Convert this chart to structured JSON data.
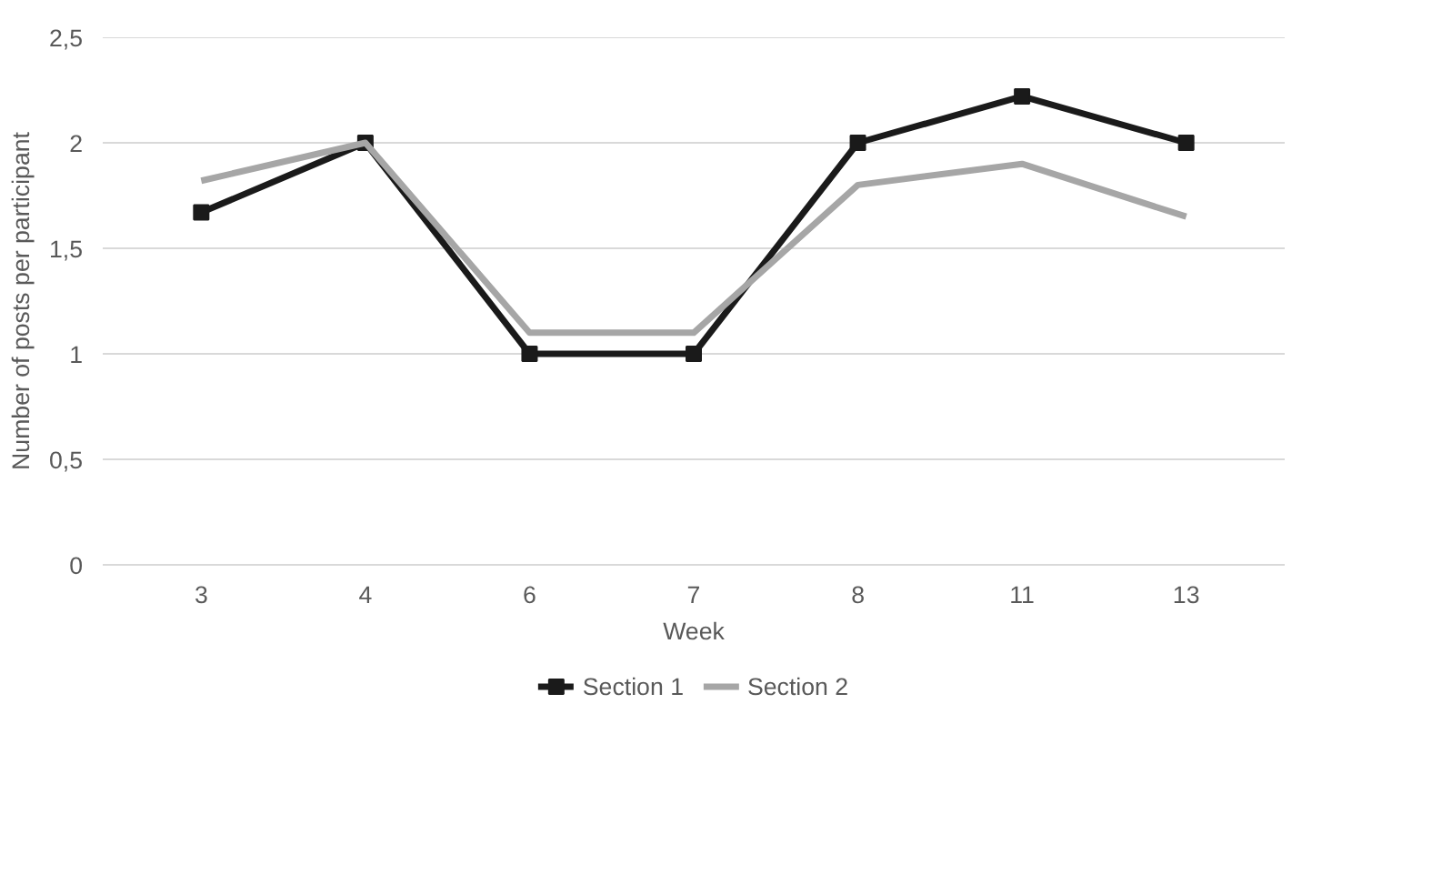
{
  "chart_data": {
    "type": "line",
    "xlabel": "Week",
    "ylabel": "Number of posts per participant",
    "categories": [
      "3",
      "4",
      "6",
      "7",
      "8",
      "11",
      "13"
    ],
    "series": [
      {
        "name": "Section 1",
        "color": "#1a1a1a",
        "marker": "square",
        "values": [
          1.67,
          2,
          1,
          1,
          2,
          2.22,
          2
        ]
      },
      {
        "name": "Section 2",
        "color": "#a6a6a6",
        "marker": "none",
        "values": [
          1.82,
          2,
          1.1,
          1.1,
          1.8,
          1.9,
          1.65
        ]
      }
    ],
    "ylim": [
      0,
      2.5
    ],
    "yticks": [
      0,
      {
        "value": 0.5,
        "label": "0,5"
      },
      1,
      {
        "value": 1.5,
        "label": "1,5"
      },
      2,
      {
        "value": 2.5,
        "label": "2,5"
      }
    ],
    "grid": "y",
    "legend": "bottom"
  }
}
